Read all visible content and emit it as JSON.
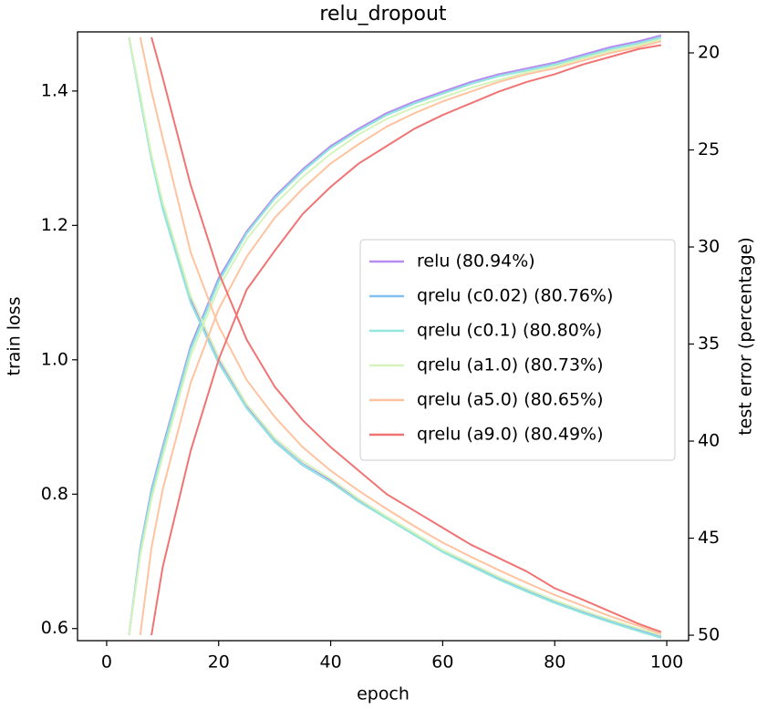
{
  "chart_data": {
    "type": "line",
    "title": "relu_dropout",
    "xlabel": "epoch",
    "ylabel": "train loss",
    "y2label": "test error (percentage)",
    "x": [
      4,
      6,
      8,
      10,
      15,
      20,
      25,
      30,
      35,
      40,
      45,
      50,
      55,
      60,
      65,
      70,
      75,
      80,
      85,
      90,
      95,
      99
    ],
    "xlim": [
      -5.2,
      103.9
    ],
    "xticks": [
      0,
      20,
      40,
      60,
      80,
      100
    ],
    "ylim": [
      0.582,
      1.488
    ],
    "yticks": [
      0.6,
      0.8,
      {
        "value": 1,
        "label": "1.0"
      },
      1.2,
      1.4
    ],
    "y2lim": [
      50.28,
      18.92
    ],
    "y2ticks": [
      20,
      25,
      30,
      35,
      40,
      45,
      50
    ],
    "legend": "center right",
    "series": [
      {
        "name": "relu (80.94%)",
        "color": "#b48cf2",
        "values": [
          1.48,
          1.39,
          1.3,
          1.23,
          1.09,
          1.0,
          0.93,
          0.88,
          0.845,
          0.82,
          0.79,
          0.765,
          0.74,
          0.715,
          0.695,
          0.675,
          0.657,
          0.64,
          0.625,
          0.611,
          0.598,
          0.588
        ],
        "y2_values": [
          50,
          45.5,
          42.5,
          40.3,
          35.1,
          31.6,
          29.2,
          27.4,
          26,
          24.8,
          23.9,
          23.1,
          22.5,
          22,
          21.5,
          21.1,
          20.8,
          20.5,
          20.1,
          19.7,
          19.4,
          19.1
        ]
      },
      {
        "name": "qrelu (c0.02) (80.76%)",
        "color": "#82c0f0",
        "values": [
          1.48,
          1.39,
          1.3,
          1.225,
          1.085,
          0.995,
          0.928,
          0.878,
          0.843,
          0.818,
          0.789,
          0.764,
          0.739,
          0.714,
          0.694,
          0.674,
          0.656,
          0.639,
          0.624,
          0.61,
          0.597,
          0.587
        ],
        "y2_values": [
          50,
          45.6,
          42.6,
          40.4,
          35.2,
          31.7,
          29.3,
          27.5,
          26.1,
          24.9,
          24,
          23.2,
          22.6,
          22.1,
          21.6,
          21.2,
          20.9,
          20.6,
          20.2,
          19.8,
          19.5,
          19.2
        ]
      },
      {
        "name": "qrelu (c0.1) (80.80%)",
        "color": "#92e6dc",
        "values": [
          1.48,
          1.388,
          1.298,
          1.225,
          1.085,
          0.996,
          0.928,
          0.879,
          0.844,
          0.818,
          0.789,
          0.764,
          0.739,
          0.714,
          0.693,
          0.673,
          0.655,
          0.638,
          0.623,
          0.609,
          0.596,
          0.586
        ],
        "y2_values": [
          50,
          45.6,
          42.7,
          40.5,
          35.3,
          31.8,
          29.3,
          27.5,
          26.1,
          24.9,
          24,
          23.2,
          22.6,
          22.1,
          21.6,
          21.2,
          20.9,
          20.6,
          20.2,
          19.8,
          19.5,
          19.2
        ]
      },
      {
        "name": "qrelu (a1.0) (80.73%)",
        "color": "#d6f3bc",
        "values": [
          1.48,
          1.395,
          1.305,
          1.235,
          1.095,
          1.004,
          0.934,
          0.884,
          0.849,
          0.823,
          0.793,
          0.767,
          0.742,
          0.717,
          0.697,
          0.677,
          0.659,
          0.642,
          0.627,
          0.613,
          0.6,
          0.59
        ],
        "y2_values": [
          50,
          45.9,
          43,
          40.8,
          35.6,
          32.1,
          29.6,
          27.8,
          26.4,
          25.2,
          24.2,
          23.4,
          22.8,
          22.3,
          21.8,
          21.4,
          21,
          20.7,
          20.3,
          19.9,
          19.6,
          19.3
        ]
      },
      {
        "name": "qrelu (a5.0) (80.65%)",
        "color": "#ffc3a0",
        "values": [
          null,
          1.48,
          1.4,
          1.33,
          1.16,
          1.05,
          0.97,
          0.915,
          0.87,
          0.835,
          0.805,
          0.778,
          0.752,
          0.728,
          0.707,
          0.687,
          0.668,
          0.65,
          0.634,
          0.618,
          0.604,
          0.592
        ],
        "y2_values": [
          null,
          50,
          45.5,
          42.5,
          37,
          33.2,
          30.5,
          28.5,
          27,
          25.7,
          24.7,
          23.8,
          23.1,
          22.5,
          22,
          21.5,
          21.1,
          20.8,
          20.4,
          20,
          19.7,
          19.4
        ]
      },
      {
        "name": "qrelu (a9.0) (80.49%)",
        "color": "#f07474",
        "values": [
          null,
          null,
          1.48,
          1.42,
          1.26,
          1.13,
          1.03,
          0.96,
          0.91,
          0.87,
          0.835,
          0.8,
          0.775,
          0.75,
          0.725,
          0.705,
          0.685,
          0.66,
          0.643,
          0.625,
          0.607,
          0.595
        ],
        "y2_values": [
          null,
          null,
          50,
          46.5,
          40.5,
          35.8,
          32.2,
          30.2,
          28.3,
          26.9,
          25.7,
          24.8,
          23.9,
          23.2,
          22.6,
          22,
          21.5,
          21.1,
          20.6,
          20.2,
          19.8,
          19.6
        ]
      }
    ]
  }
}
